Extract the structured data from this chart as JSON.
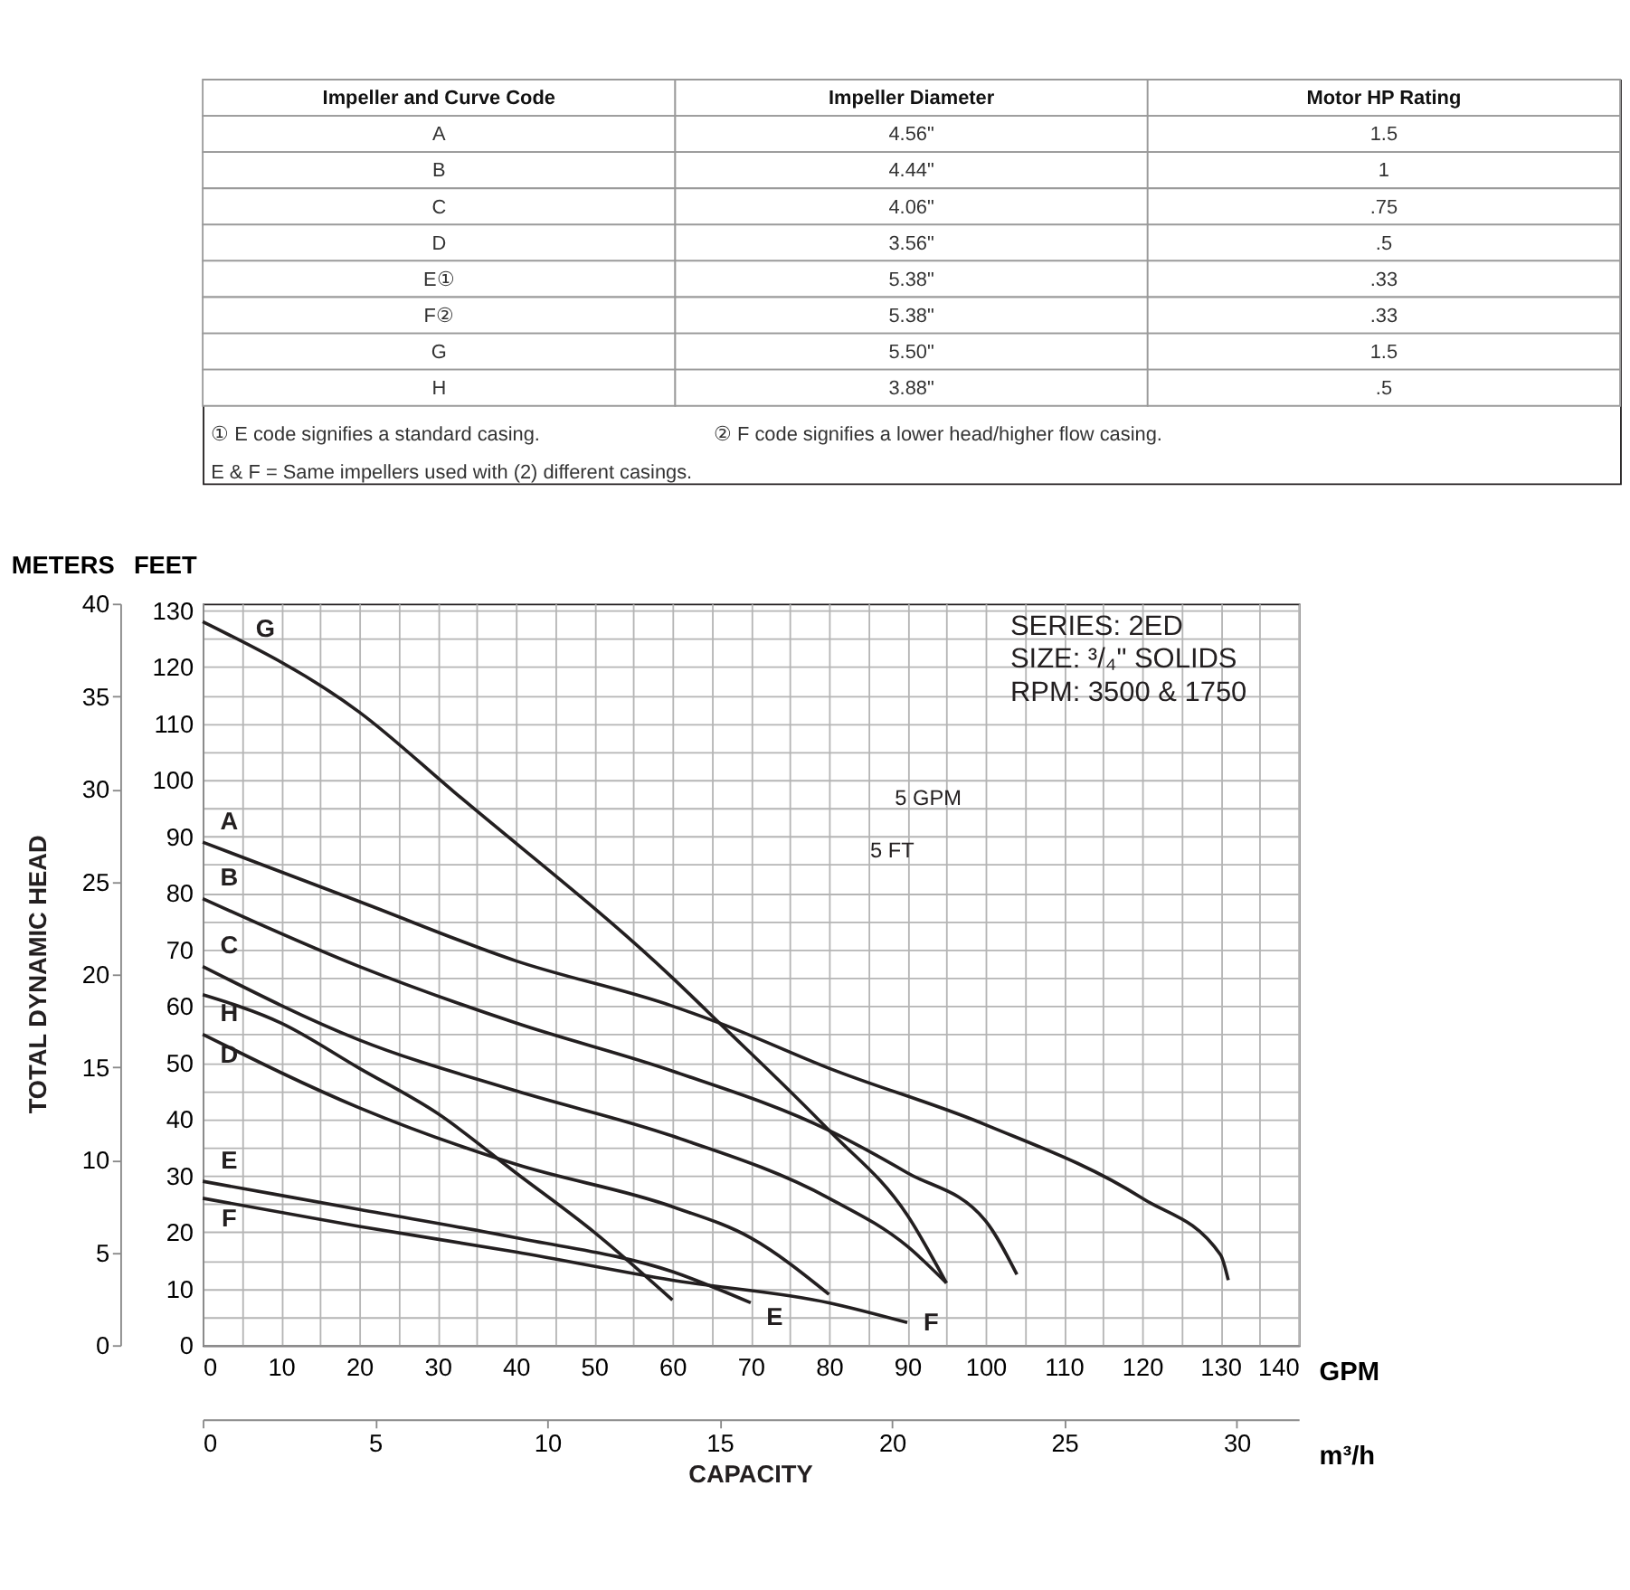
{
  "chart_data": [
    {
      "type": "other",
      "annotations": [
        "Impeller and Curve Code",
        "Impeller Diameter",
        "Motor HP Rating",
        "A",
        "4.56\"",
        "1.5",
        "B",
        "4.44\"",
        "1",
        "C",
        "4.06\"",
        ".75",
        "D",
        "3.56\"",
        ".5",
        "E①",
        "5.38\"",
        ".33",
        "F②",
        "5.38\"",
        ".33",
        "G",
        "5.50\"",
        "1.5",
        "H",
        "3.88\"",
        ".5",
        "① E code signifies a standard casing.",
        "② F code signifies a lower head/higher flow casing.",
        "E & F = Same impellers used with (2) different casings."
      ]
    },
    {
      "type": "line",
      "xlabel": "GPM",
      "ylabel": "FEET",
      "y2label": "METERS",
      "x2label": "m³/h",
      "grid": true,
      "xlim": [
        0,
        140
      ],
      "ylim": [
        0,
        131.2
      ],
      "y2lim": [
        0,
        40
      ],
      "x2lim": [
        0,
        31.8
      ],
      "xticks": [
        0,
        {
          "value": 5,
          "label": null
        },
        10,
        {
          "value": 15,
          "label": null
        },
        20,
        {
          "value": 25,
          "label": null
        },
        30,
        {
          "value": 35,
          "label": null
        },
        40,
        {
          "value": 45,
          "label": null
        },
        50,
        {
          "value": 55,
          "label": null
        },
        60,
        {
          "value": 65,
          "label": null
        },
        70,
        {
          "value": 75,
          "label": null
        },
        80,
        {
          "value": 85,
          "label": null
        },
        90,
        {
          "value": 95,
          "label": null
        },
        100,
        {
          "value": 105,
          "label": null
        },
        110,
        {
          "value": 115,
          "label": null
        },
        120,
        {
          "value": 125,
          "label": null
        },
        130,
        {
          "value": 135,
          "label": null
        },
        140
      ],
      "yticks": [
        0,
        {
          "value": 5,
          "label": null
        },
        10,
        {
          "value": 15,
          "label": null
        },
        20,
        {
          "value": 25,
          "label": null
        },
        30,
        {
          "value": 35,
          "label": null
        },
        40,
        {
          "value": 45,
          "label": null
        },
        50,
        {
          "value": 55,
          "label": null
        },
        60,
        {
          "value": 65,
          "label": null
        },
        70,
        {
          "value": 75,
          "label": null
        },
        80,
        {
          "value": 85,
          "label": null
        },
        90,
        {
          "value": 95,
          "label": null
        },
        100,
        {
          "value": 105,
          "label": null
        },
        110,
        {
          "value": 115,
          "label": null
        },
        120,
        {
          "value": 125,
          "label": null
        },
        130
      ],
      "y2ticks": [
        0,
        5,
        10,
        15,
        20,
        25,
        30,
        35,
        40
      ],
      "x2ticks": [
        0,
        5,
        10,
        15,
        20,
        25,
        30
      ],
      "series": [
        {
          "name": "G",
          "color": "#231f20",
          "x": [
            0,
            20,
            32,
            60,
            66,
            80,
            90,
            95
          ],
          "values": [
            128,
            112,
            98,
            65,
            57,
            38,
            23,
            11
          ]
        },
        {
          "name": "A",
          "color": "#231f20",
          "x": [
            0,
            20,
            40,
            60,
            66,
            80,
            100,
            120,
            130,
            131
          ],
          "values": [
            89,
            78.5,
            68,
            60,
            57,
            49,
            39,
            26,
            16,
            11.5
          ]
        },
        {
          "name": "B",
          "color": "#231f20",
          "x": [
            0,
            20,
            40,
            60,
            80,
            90,
            100,
            104
          ],
          "values": [
            79,
            67,
            57,
            48.5,
            38,
            30.5,
            22,
            12.5
          ]
        },
        {
          "name": "C",
          "color": "#231f20",
          "x": [
            0,
            20,
            40,
            60,
            80,
            90,
            95
          ],
          "values": [
            67,
            54,
            45,
            37,
            26,
            17.5,
            11
          ]
        },
        {
          "name": "H",
          "color": "#231f20",
          "x": [
            0,
            10,
            20,
            30,
            40,
            50,
            60
          ],
          "values": [
            62,
            57,
            49,
            41,
            30.5,
            20,
            8
          ]
        },
        {
          "name": "D",
          "color": "#231f20",
          "x": [
            0,
            20,
            40,
            60,
            70,
            80
          ],
          "values": [
            55,
            42,
            32,
            24.5,
            19,
            9
          ]
        },
        {
          "name": "E",
          "color": "#231f20",
          "x": [
            0,
            20,
            40,
            60,
            70
          ],
          "values": [
            29,
            24,
            19,
            13,
            7.5
          ]
        },
        {
          "name": "F",
          "color": "#231f20",
          "x": [
            0,
            20,
            40,
            60,
            80,
            90
          ],
          "values": [
            26,
            21,
            16.5,
            11.5,
            7.5,
            4
          ]
        }
      ],
      "annotations": [
        "SERIES: 2ED",
        "SIZE: ³/₄\" SOLIDS",
        "RPM: 3500 & 1750",
        "5 GPM",
        "5 FT",
        "TOTAL DYNAMIC HEAD",
        "CAPACITY",
        "E",
        "F"
      ]
    }
  ]
}
